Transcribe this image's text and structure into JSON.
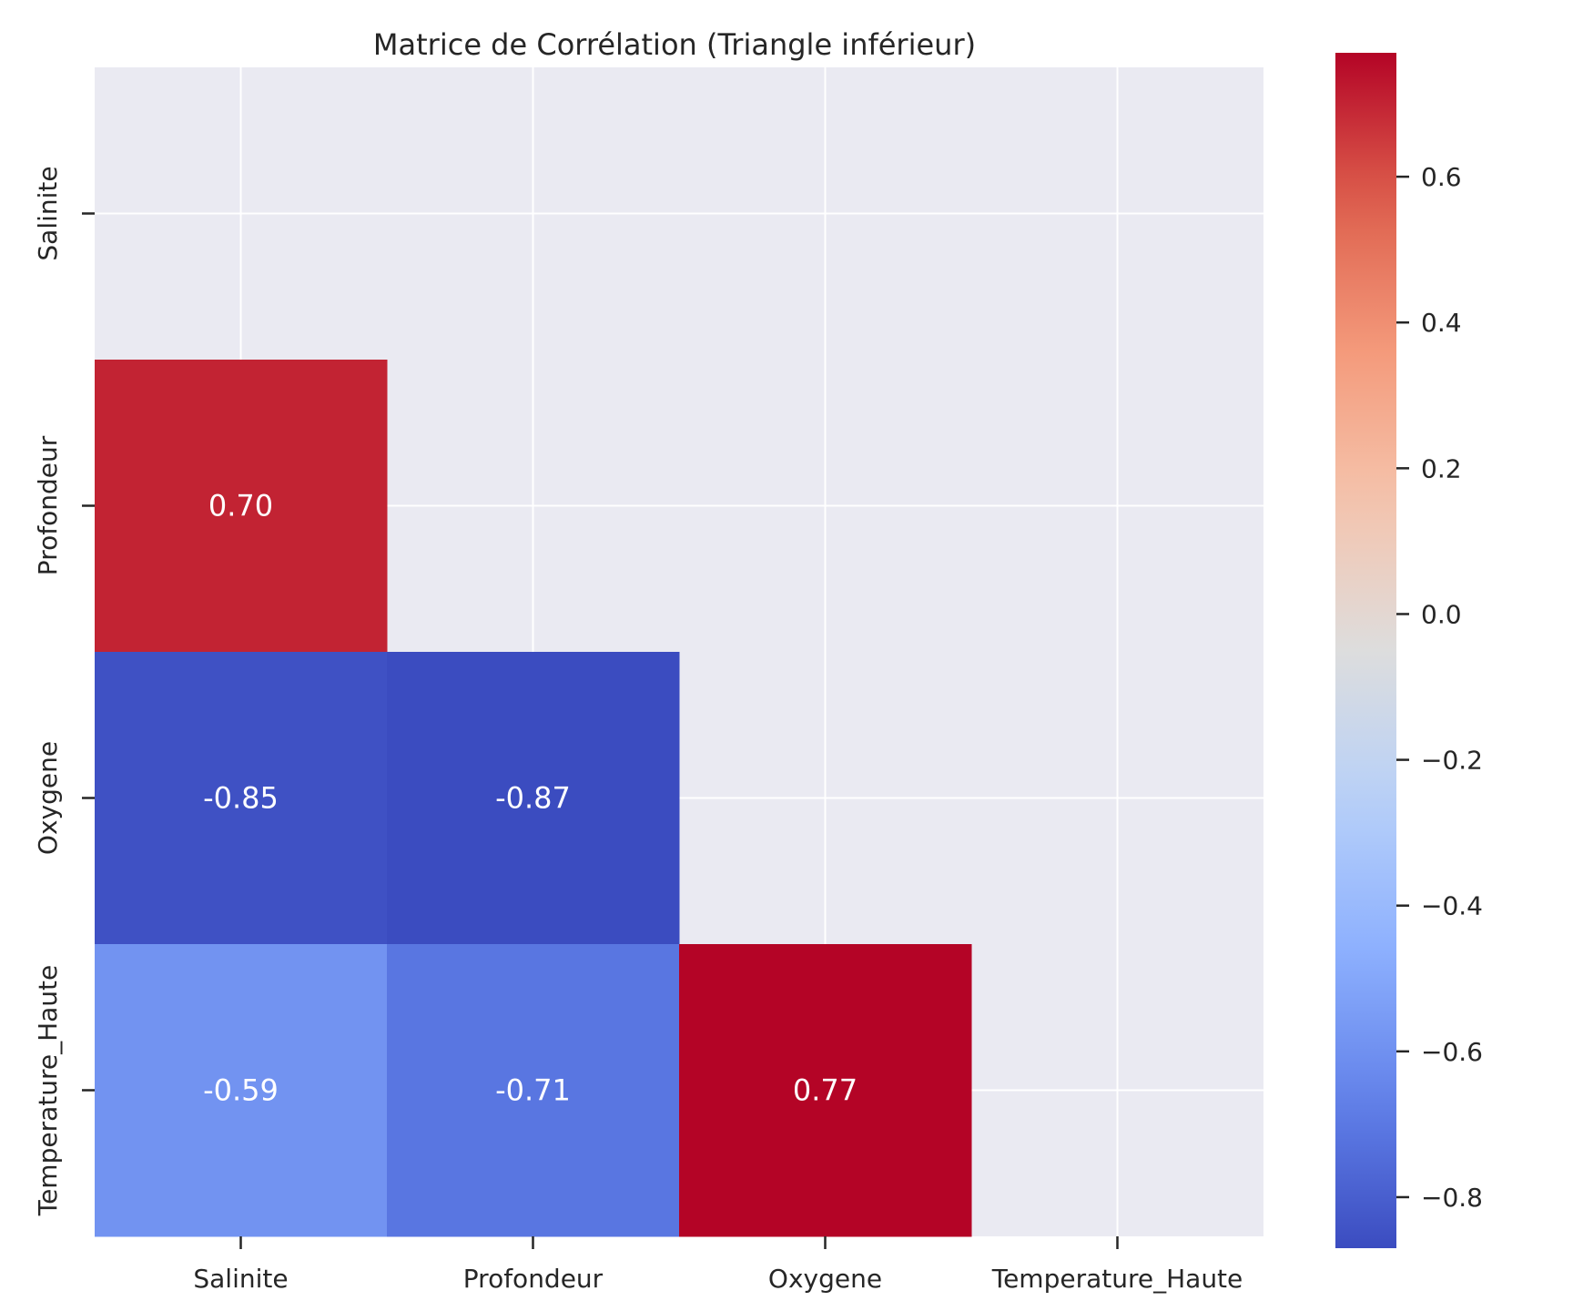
{
  "chart_data": {
    "type": "heatmap",
    "title": "Matrice de Corrélation (Triangle inférieur)",
    "variables": [
      "Salinite",
      "Profondeur",
      "Oxygene",
      "Temperature_Haute"
    ],
    "x_tick_labels": [
      "Salinite",
      "Profondeur",
      "Oxygene",
      "Temperature_Haute"
    ],
    "y_tick_labels": [
      "Salinite",
      "Profondeur",
      "Oxygene",
      "Temperature_Haute"
    ],
    "mask": "upper triangle including diagonal",
    "cells": [
      {
        "row": "Profondeur",
        "col": "Salinite",
        "value": 0.7,
        "label": "0.70"
      },
      {
        "row": "Oxygene",
        "col": "Salinite",
        "value": -0.85,
        "label": "-0.85"
      },
      {
        "row": "Oxygene",
        "col": "Profondeur",
        "value": -0.87,
        "label": "-0.87"
      },
      {
        "row": "Temperature_Haute",
        "col": "Salinite",
        "value": -0.59,
        "label": "-0.59"
      },
      {
        "row": "Temperature_Haute",
        "col": "Profondeur",
        "value": -0.71,
        "label": "-0.71"
      },
      {
        "row": "Temperature_Haute",
        "col": "Oxygene",
        "value": 0.77,
        "label": "0.77"
      }
    ],
    "colormap": "coolwarm",
    "color_range": [
      -0.87,
      0.77
    ],
    "colorbar_ticks": [
      {
        "value": 0.6,
        "label": "0.6"
      },
      {
        "value": 0.4,
        "label": "0.4"
      },
      {
        "value": 0.2,
        "label": "0.2"
      },
      {
        "value": 0.0,
        "label": "0.0"
      },
      {
        "value": -0.2,
        "label": "−0.2"
      },
      {
        "value": -0.4,
        "label": "−0.4"
      },
      {
        "value": -0.6,
        "label": "−0.6"
      },
      {
        "value": -0.8,
        "label": "−0.8"
      }
    ],
    "grid": true,
    "colors": {
      "axes_background": "#eaeaf2",
      "grid": "#ffffff",
      "text": "#262626",
      "cell_text": "#ffffff"
    }
  }
}
